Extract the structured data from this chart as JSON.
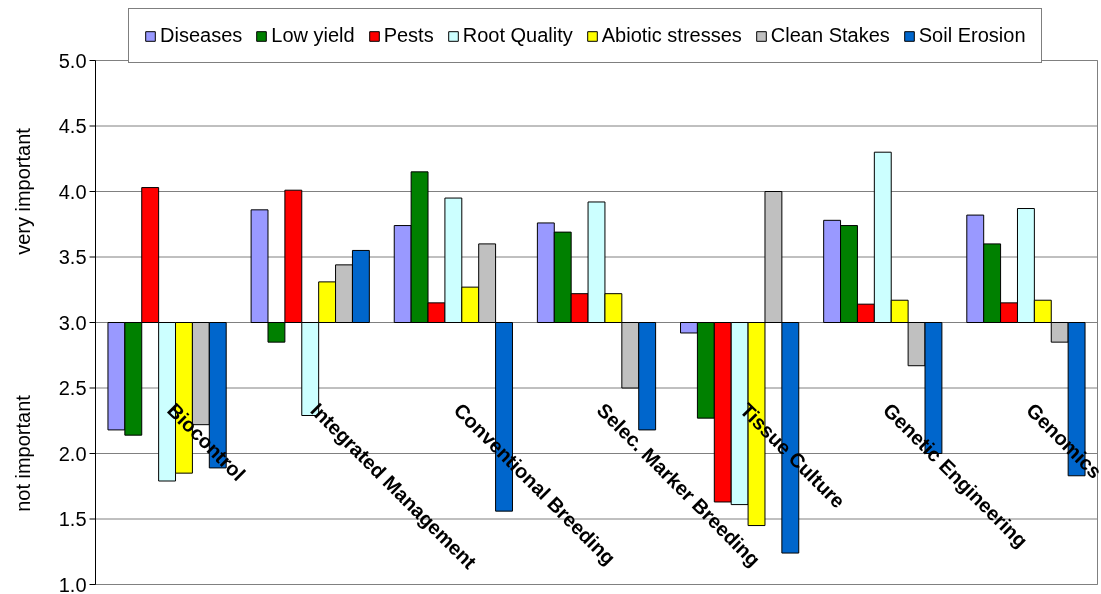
{
  "chart_data": {
    "type": "bar",
    "categories": [
      "Biocontrol",
      "Integrated Management",
      "Conventional Breeding",
      "Selec. Marker Breeding",
      "Tissue Culture",
      "Genetic Engineering",
      "Genomics"
    ],
    "series": [
      {
        "name": "Diseases",
        "color": "#9999ff",
        "base": [
          3,
          3,
          3,
          3,
          3,
          3,
          3
        ],
        "values": [
          -0.82,
          0.86,
          0.74,
          0.76,
          -0.08,
          0.78,
          0.82
        ]
      },
      {
        "name": "Low yield",
        "color": "#008000",
        "base": [
          3,
          3,
          3,
          3,
          3,
          3,
          3
        ],
        "values": [
          -0.86,
          -0.15,
          1.15,
          0.69,
          -0.73,
          0.74,
          0.6
        ]
      },
      {
        "name": "Pests",
        "color": "#ff0000",
        "base": [
          3,
          3,
          3,
          3,
          3,
          3,
          3
        ],
        "values": [
          1.03,
          1.01,
          0.15,
          0.22,
          -1.37,
          0.14,
          0.15
        ]
      },
      {
        "name": "Root Quality",
        "color": "#ccffff",
        "base": [
          3,
          3,
          3,
          3,
          3,
          3,
          3
        ],
        "values": [
          -1.21,
          -0.71,
          0.95,
          0.92,
          -1.39,
          1.3,
          0.87
        ]
      },
      {
        "name": "Abiotic stresses",
        "color": "#ffff00",
        "base": [
          3,
          3,
          3,
          3,
          3,
          3,
          3
        ],
        "values": [
          -1.15,
          0.31,
          0.27,
          0.22,
          -1.55,
          0.17,
          0.17
        ]
      },
      {
        "name": "Clean Stakes",
        "color": "#c0c0c0",
        "base": [
          3,
          3,
          3,
          3,
          3,
          3,
          3
        ],
        "values": [
          -0.78,
          0.44,
          0.6,
          -0.5,
          1.0,
          -0.33,
          -0.15
        ]
      },
      {
        "name": "Soil Erosion",
        "color": "#0066cc",
        "base": [
          3,
          3,
          3,
          3,
          3,
          3,
          3
        ],
        "values": [
          -1.11,
          0.55,
          -1.44,
          -0.82,
          -1.76,
          -1.0,
          -1.17
        ]
      }
    ],
    "ylim": [
      1,
      5
    ],
    "yticks": [
      {
        "value": 1,
        "label": "1.0"
      },
      1.5,
      {
        "value": 2,
        "label": "2.0"
      },
      2.5,
      {
        "value": 3,
        "label": "3.0"
      },
      3.5,
      {
        "value": 4,
        "label": "4.0"
      },
      4.5,
      {
        "value": 5,
        "label": "5.0"
      }
    ],
    "annotations": [
      "very important",
      "not important"
    ],
    "grid": "y",
    "legend": "top"
  }
}
